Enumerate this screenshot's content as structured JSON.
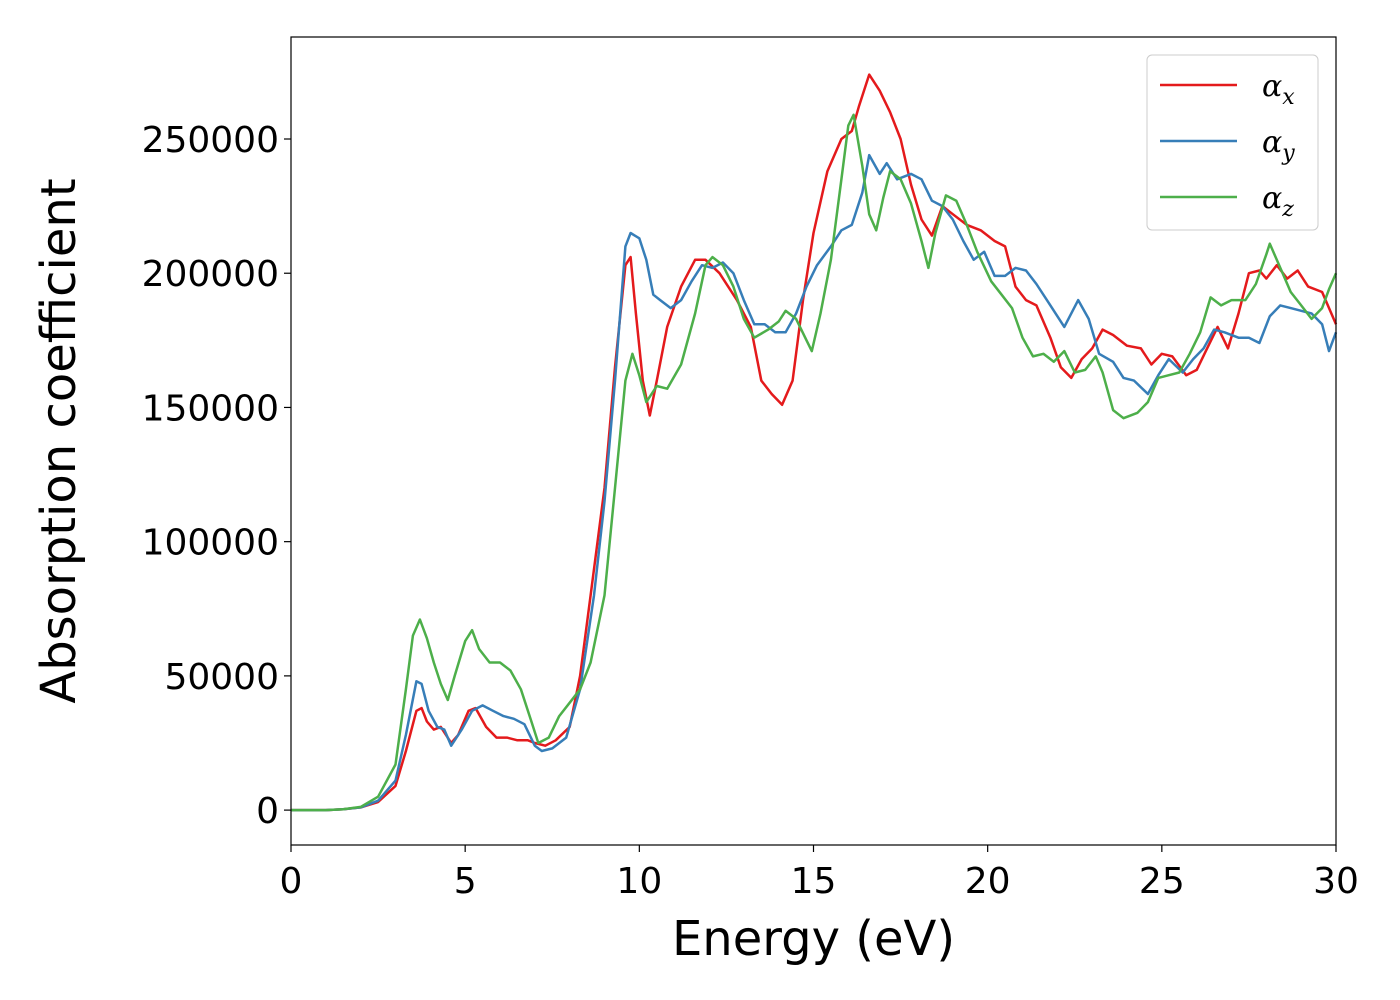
{
  "chart_data": {
    "type": "line",
    "title": "",
    "xlabel": "Energy (eV)",
    "ylabel": "Absorption coefficient",
    "xlim": [
      0,
      30
    ],
    "ylim": [
      -13000,
      288000
    ],
    "xticks": [
      0,
      5,
      10,
      15,
      20,
      25,
      30
    ],
    "yticks": [
      0,
      50000,
      100000,
      150000,
      200000,
      250000
    ],
    "grid": false,
    "legend_position": "top-right",
    "series": [
      {
        "name": "α_x",
        "legend_base": "α",
        "legend_sub": "x",
        "color": "#e41a1c",
        "points": [
          [
            0,
            0
          ],
          [
            1,
            0
          ],
          [
            1.5,
            300
          ],
          [
            2,
            1000
          ],
          [
            2.5,
            3000
          ],
          [
            3,
            9000
          ],
          [
            3.3,
            22000
          ],
          [
            3.6,
            37000
          ],
          [
            3.75,
            38000
          ],
          [
            3.9,
            33000
          ],
          [
            4.1,
            30000
          ],
          [
            4.3,
            31000
          ],
          [
            4.6,
            25000
          ],
          [
            4.8,
            28000
          ],
          [
            5.1,
            37000
          ],
          [
            5.3,
            38000
          ],
          [
            5.6,
            31000
          ],
          [
            5.9,
            27000
          ],
          [
            6.2,
            27000
          ],
          [
            6.5,
            26000
          ],
          [
            6.8,
            26000
          ],
          [
            7.0,
            25000
          ],
          [
            7.3,
            24000
          ],
          [
            7.6,
            26000
          ],
          [
            8.0,
            31000
          ],
          [
            8.3,
            50000
          ],
          [
            8.6,
            80000
          ],
          [
            9.0,
            120000
          ],
          [
            9.3,
            165000
          ],
          [
            9.6,
            203000
          ],
          [
            9.75,
            206000
          ],
          [
            9.9,
            185000
          ],
          [
            10.1,
            160000
          ],
          [
            10.3,
            147000
          ],
          [
            10.5,
            160000
          ],
          [
            10.8,
            180000
          ],
          [
            11.2,
            195000
          ],
          [
            11.6,
            205000
          ],
          [
            11.9,
            205000
          ],
          [
            12.3,
            200000
          ],
          [
            12.8,
            190000
          ],
          [
            13.2,
            180000
          ],
          [
            13.5,
            160000
          ],
          [
            13.8,
            155000
          ],
          [
            14.1,
            151000
          ],
          [
            14.4,
            160000
          ],
          [
            14.7,
            190000
          ],
          [
            15.0,
            215000
          ],
          [
            15.4,
            238000
          ],
          [
            15.8,
            250000
          ],
          [
            16.1,
            253000
          ],
          [
            16.3,
            262000
          ],
          [
            16.6,
            274000
          ],
          [
            16.9,
            268000
          ],
          [
            17.2,
            260000
          ],
          [
            17.5,
            250000
          ],
          [
            17.8,
            233000
          ],
          [
            18.1,
            220000
          ],
          [
            18.4,
            214000
          ],
          [
            18.7,
            225000
          ],
          [
            19.0,
            222000
          ],
          [
            19.4,
            218000
          ],
          [
            19.8,
            216000
          ],
          [
            20.2,
            212000
          ],
          [
            20.5,
            210000
          ],
          [
            20.8,
            195000
          ],
          [
            21.1,
            190000
          ],
          [
            21.4,
            188000
          ],
          [
            21.8,
            176000
          ],
          [
            22.1,
            165000
          ],
          [
            22.4,
            161000
          ],
          [
            22.7,
            168000
          ],
          [
            23.0,
            172000
          ],
          [
            23.3,
            179000
          ],
          [
            23.6,
            177000
          ],
          [
            24.0,
            173000
          ],
          [
            24.4,
            172000
          ],
          [
            24.7,
            166000
          ],
          [
            25.0,
            170000
          ],
          [
            25.3,
            169000
          ],
          [
            25.7,
            162000
          ],
          [
            26.0,
            164000
          ],
          [
            26.3,
            172000
          ],
          [
            26.6,
            180000
          ],
          [
            26.9,
            172000
          ],
          [
            27.2,
            185000
          ],
          [
            27.5,
            200000
          ],
          [
            27.8,
            201000
          ],
          [
            28.0,
            198000
          ],
          [
            28.3,
            203000
          ],
          [
            28.6,
            198000
          ],
          [
            28.9,
            201000
          ],
          [
            29.2,
            195000
          ],
          [
            29.6,
            193000
          ],
          [
            30.0,
            181000
          ]
        ]
      },
      {
        "name": "α_y",
        "legend_base": "α",
        "legend_sub": "y",
        "color": "#377eb8",
        "points": [
          [
            0,
            0
          ],
          [
            1,
            0
          ],
          [
            1.5,
            300
          ],
          [
            2,
            1000
          ],
          [
            2.5,
            3500
          ],
          [
            3,
            11000
          ],
          [
            3.3,
            28000
          ],
          [
            3.6,
            48000
          ],
          [
            3.75,
            47000
          ],
          [
            3.95,
            37000
          ],
          [
            4.2,
            31000
          ],
          [
            4.4,
            30000
          ],
          [
            4.6,
            24000
          ],
          [
            4.9,
            30000
          ],
          [
            5.2,
            37000
          ],
          [
            5.5,
            39000
          ],
          [
            5.8,
            37000
          ],
          [
            6.1,
            35000
          ],
          [
            6.4,
            34000
          ],
          [
            6.7,
            32000
          ],
          [
            7.0,
            24000
          ],
          [
            7.2,
            22000
          ],
          [
            7.5,
            23000
          ],
          [
            7.9,
            27000
          ],
          [
            8.3,
            45000
          ],
          [
            8.7,
            80000
          ],
          [
            9.0,
            115000
          ],
          [
            9.3,
            160000
          ],
          [
            9.6,
            210000
          ],
          [
            9.75,
            215000
          ],
          [
            10.0,
            213000
          ],
          [
            10.2,
            205000
          ],
          [
            10.4,
            192000
          ],
          [
            10.6,
            190000
          ],
          [
            10.9,
            187000
          ],
          [
            11.2,
            190000
          ],
          [
            11.5,
            197000
          ],
          [
            11.8,
            203000
          ],
          [
            12.1,
            202000
          ],
          [
            12.4,
            204000
          ],
          [
            12.7,
            200000
          ],
          [
            13.0,
            190000
          ],
          [
            13.3,
            181000
          ],
          [
            13.6,
            181000
          ],
          [
            13.9,
            178000
          ],
          [
            14.2,
            178000
          ],
          [
            14.5,
            185000
          ],
          [
            14.8,
            195000
          ],
          [
            15.1,
            203000
          ],
          [
            15.5,
            210000
          ],
          [
            15.8,
            216000
          ],
          [
            16.1,
            218000
          ],
          [
            16.4,
            230000
          ],
          [
            16.6,
            244000
          ],
          [
            16.9,
            237000
          ],
          [
            17.1,
            241000
          ],
          [
            17.4,
            235000
          ],
          [
            17.8,
            237000
          ],
          [
            18.1,
            235000
          ],
          [
            18.4,
            227000
          ],
          [
            18.7,
            225000
          ],
          [
            19.0,
            220000
          ],
          [
            19.3,
            212000
          ],
          [
            19.6,
            205000
          ],
          [
            19.9,
            208000
          ],
          [
            20.2,
            199000
          ],
          [
            20.5,
            199000
          ],
          [
            20.8,
            202000
          ],
          [
            21.1,
            201000
          ],
          [
            21.4,
            196000
          ],
          [
            21.8,
            188000
          ],
          [
            22.2,
            180000
          ],
          [
            22.6,
            190000
          ],
          [
            22.9,
            183000
          ],
          [
            23.2,
            170000
          ],
          [
            23.6,
            167000
          ],
          [
            23.9,
            161000
          ],
          [
            24.2,
            160000
          ],
          [
            24.6,
            155000
          ],
          [
            24.9,
            162000
          ],
          [
            25.2,
            168000
          ],
          [
            25.6,
            163000
          ],
          [
            25.9,
            168000
          ],
          [
            26.2,
            172000
          ],
          [
            26.5,
            179000
          ],
          [
            26.8,
            178000
          ],
          [
            27.2,
            176000
          ],
          [
            27.5,
            176000
          ],
          [
            27.8,
            174000
          ],
          [
            28.1,
            184000
          ],
          [
            28.4,
            188000
          ],
          [
            28.7,
            187000
          ],
          [
            29.0,
            186000
          ],
          [
            29.3,
            185000
          ],
          [
            29.6,
            181000
          ],
          [
            29.8,
            171000
          ],
          [
            30.0,
            178000
          ]
        ]
      },
      {
        "name": "α_z",
        "legend_base": "α",
        "legend_sub": "z",
        "color": "#4daf4a",
        "points": [
          [
            0,
            0
          ],
          [
            1,
            0
          ],
          [
            1.5,
            300
          ],
          [
            2,
            1200
          ],
          [
            2.5,
            5000
          ],
          [
            3,
            17000
          ],
          [
            3.3,
            45000
          ],
          [
            3.5,
            65000
          ],
          [
            3.7,
            71000
          ],
          [
            3.9,
            64000
          ],
          [
            4.1,
            55000
          ],
          [
            4.3,
            47000
          ],
          [
            4.5,
            41000
          ],
          [
            4.7,
            50000
          ],
          [
            5.0,
            63000
          ],
          [
            5.2,
            67000
          ],
          [
            5.4,
            60000
          ],
          [
            5.7,
            55000
          ],
          [
            6.0,
            55000
          ],
          [
            6.3,
            52000
          ],
          [
            6.6,
            45000
          ],
          [
            6.9,
            33000
          ],
          [
            7.1,
            25000
          ],
          [
            7.4,
            27000
          ],
          [
            7.7,
            35000
          ],
          [
            8.0,
            40000
          ],
          [
            8.3,
            45000
          ],
          [
            8.6,
            55000
          ],
          [
            9.0,
            80000
          ],
          [
            9.3,
            120000
          ],
          [
            9.6,
            160000
          ],
          [
            9.8,
            170000
          ],
          [
            10.0,
            162000
          ],
          [
            10.2,
            152000
          ],
          [
            10.5,
            158000
          ],
          [
            10.8,
            157000
          ],
          [
            11.2,
            166000
          ],
          [
            11.6,
            185000
          ],
          [
            11.9,
            203000
          ],
          [
            12.1,
            206000
          ],
          [
            12.4,
            203000
          ],
          [
            12.7,
            195000
          ],
          [
            13.0,
            183000
          ],
          [
            13.3,
            176000
          ],
          [
            13.7,
            179000
          ],
          [
            14.0,
            182000
          ],
          [
            14.2,
            186000
          ],
          [
            14.5,
            183000
          ],
          [
            14.8,
            175000
          ],
          [
            14.95,
            171000
          ],
          [
            15.2,
            185000
          ],
          [
            15.5,
            205000
          ],
          [
            15.8,
            235000
          ],
          [
            16.0,
            255000
          ],
          [
            16.15,
            259000
          ],
          [
            16.4,
            240000
          ],
          [
            16.6,
            222000
          ],
          [
            16.8,
            216000
          ],
          [
            17.0,
            228000
          ],
          [
            17.2,
            238000
          ],
          [
            17.5,
            235000
          ],
          [
            17.8,
            226000
          ],
          [
            18.1,
            212000
          ],
          [
            18.3,
            202000
          ],
          [
            18.5,
            215000
          ],
          [
            18.8,
            229000
          ],
          [
            19.1,
            227000
          ],
          [
            19.4,
            218000
          ],
          [
            19.7,
            208000
          ],
          [
            20.1,
            197000
          ],
          [
            20.4,
            192000
          ],
          [
            20.7,
            187000
          ],
          [
            21.0,
            176000
          ],
          [
            21.3,
            169000
          ],
          [
            21.6,
            170000
          ],
          [
            21.9,
            167000
          ],
          [
            22.2,
            171000
          ],
          [
            22.5,
            163000
          ],
          [
            22.8,
            164000
          ],
          [
            23.1,
            169000
          ],
          [
            23.3,
            163000
          ],
          [
            23.6,
            149000
          ],
          [
            23.9,
            146000
          ],
          [
            24.3,
            148000
          ],
          [
            24.6,
            152000
          ],
          [
            24.9,
            161000
          ],
          [
            25.2,
            162000
          ],
          [
            25.5,
            163000
          ],
          [
            25.8,
            170000
          ],
          [
            26.1,
            178000
          ],
          [
            26.4,
            191000
          ],
          [
            26.7,
            188000
          ],
          [
            27.0,
            190000
          ],
          [
            27.4,
            190000
          ],
          [
            27.7,
            196000
          ],
          [
            28.0,
            207000
          ],
          [
            28.1,
            211000
          ],
          [
            28.4,
            202000
          ],
          [
            28.7,
            193000
          ],
          [
            29.0,
            188000
          ],
          [
            29.3,
            183000
          ],
          [
            29.6,
            187000
          ],
          [
            29.8,
            194000
          ],
          [
            30.0,
            200000
          ]
        ]
      }
    ]
  }
}
